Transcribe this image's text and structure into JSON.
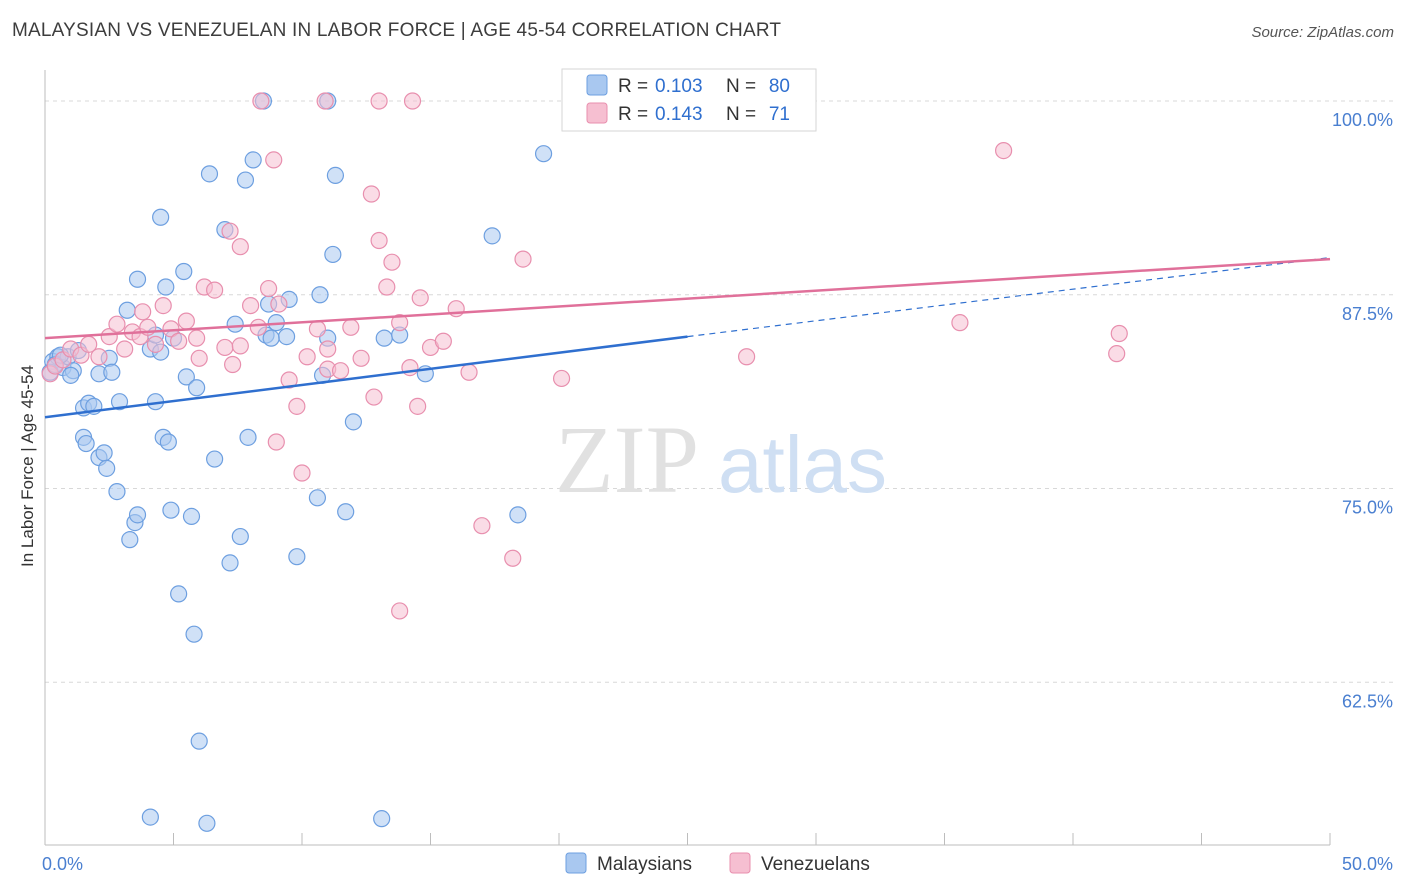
{
  "header": {
    "title": "MALAYSIAN VS VENEZUELAN IN LABOR FORCE | AGE 45-54 CORRELATION CHART",
    "source": "Source: ZipAtlas.com"
  },
  "watermark": {
    "zip": "ZIP",
    "atlas": "atlas"
  },
  "colors": {
    "blue_fill": "#a9c8f0",
    "blue_stroke": "#6d9fe0",
    "blue_line": "#2f6fcf",
    "pink_fill": "#f6bfd1",
    "pink_stroke": "#e88fae",
    "pink_line": "#e0709a",
    "tick_label": "#4a7fd0",
    "grid": "#d8d8d8"
  },
  "legend_box": {
    "rows": [
      {
        "r_label": "R =",
        "r_value": "0.103",
        "n_label": "N =",
        "n_value": "80",
        "series": "blue"
      },
      {
        "r_label": "R =",
        "r_value": "0.143",
        "n_label": "N =",
        "n_value": "71",
        "series": "pink"
      }
    ]
  },
  "chart_data": {
    "type": "scatter",
    "title": "MALAYSIAN VS VENEZUELAN IN LABOR FORCE | AGE 45-54 CORRELATION CHART",
    "xlabel": "",
    "ylabel": "In Labor Force | Age 45-54",
    "xlim": [
      0,
      50
    ],
    "ylim": [
      52,
      102
    ],
    "x_tick_labels": [
      {
        "value": 0,
        "label": "0.0%"
      },
      {
        "value": 50,
        "label": "50.0%"
      }
    ],
    "y_tick_labels": [
      {
        "value": 100,
        "label": "100.0%"
      },
      {
        "value": 87.5,
        "label": "87.5%"
      },
      {
        "value": 75,
        "label": "75.0%"
      },
      {
        "value": 62.5,
        "label": "62.5%"
      }
    ],
    "grid": true,
    "legend_position": "bottom",
    "series": [
      {
        "name": "Malaysians",
        "color_key": "blue",
        "R": 0.103,
        "N": 80,
        "trend": {
          "x0": 0,
          "y0": 79.6,
          "x1": 25,
          "y1": 84.8,
          "dashed_to_x": 50,
          "dashed_to_y": 89.9
        },
        "points": [
          [
            0.3,
            83.2
          ],
          [
            0.5,
            83.5
          ],
          [
            0.7,
            82.8
          ],
          [
            0.9,
            83.5
          ],
          [
            1.1,
            82.6
          ],
          [
            1.3,
            83.9
          ],
          [
            1.5,
            80.2
          ],
          [
            1.7,
            80.5
          ],
          [
            1.9,
            80.3
          ],
          [
            2.1,
            82.4
          ],
          [
            1.0,
            82.3
          ],
          [
            2.5,
            83.4
          ],
          [
            2.6,
            82.5
          ],
          [
            2.9,
            80.6
          ],
          [
            3.2,
            86.5
          ],
          [
            3.6,
            88.5
          ],
          [
            4.1,
            84.0
          ],
          [
            4.3,
            84.9
          ],
          [
            5.0,
            84.7
          ],
          [
            5.4,
            89.0
          ],
          [
            4.5,
            92.5
          ],
          [
            4.7,
            88.0
          ],
          [
            5.5,
            82.2
          ],
          [
            5.9,
            81.5
          ],
          [
            6.4,
            95.3
          ],
          [
            7.0,
            91.7
          ],
          [
            7.4,
            85.6
          ],
          [
            7.8,
            94.9
          ],
          [
            8.1,
            96.2
          ],
          [
            8.7,
            86.9
          ],
          [
            9.0,
            85.7
          ],
          [
            9.4,
            84.8
          ],
          [
            9.5,
            87.2
          ],
          [
            10.7,
            87.5
          ],
          [
            11.0,
            84.7
          ],
          [
            11.2,
            90.1
          ],
          [
            11.3,
            95.2
          ],
          [
            12.0,
            79.3
          ],
          [
            8.5,
            100.0
          ],
          [
            11.0,
            100.0
          ],
          [
            1.5,
            78.3
          ],
          [
            1.6,
            77.9
          ],
          [
            2.1,
            77.0
          ],
          [
            2.3,
            77.3
          ],
          [
            2.4,
            76.3
          ],
          [
            2.8,
            74.8
          ],
          [
            3.3,
            71.7
          ],
          [
            3.5,
            72.8
          ],
          [
            3.6,
            73.3
          ],
          [
            4.3,
            80.6
          ],
          [
            4.5,
            83.8
          ],
          [
            4.6,
            78.3
          ],
          [
            4.8,
            78.0
          ],
          [
            4.9,
            73.6
          ],
          [
            5.2,
            68.2
          ],
          [
            5.7,
            73.2
          ],
          [
            5.8,
            65.6
          ],
          [
            6.6,
            76.9
          ],
          [
            7.2,
            70.2
          ],
          [
            7.6,
            71.9
          ],
          [
            7.9,
            78.3
          ],
          [
            8.6,
            84.9
          ],
          [
            9.8,
            70.6
          ],
          [
            10.6,
            74.4
          ],
          [
            10.8,
            82.3
          ],
          [
            11.7,
            73.5
          ],
          [
            13.2,
            84.7
          ],
          [
            13.8,
            84.9
          ],
          [
            14.8,
            82.4
          ],
          [
            17.4,
            91.3
          ],
          [
            18.4,
            73.3
          ],
          [
            19.4,
            96.6
          ],
          [
            6.0,
            58.7
          ],
          [
            4.1,
            53.8
          ],
          [
            6.3,
            53.4
          ],
          [
            13.1,
            53.7
          ],
          [
            0.2,
            82.5
          ],
          [
            0.4,
            83.0
          ],
          [
            0.6,
            83.6
          ],
          [
            8.8,
            84.7
          ]
        ]
      },
      {
        "name": "Venezuelans",
        "color_key": "pink",
        "R": 0.143,
        "N": 71,
        "trend": {
          "x0": 0,
          "y0": 84.7,
          "x1": 50,
          "y1": 89.8
        },
        "points": [
          [
            0.2,
            82.4
          ],
          [
            0.4,
            82.9
          ],
          [
            0.7,
            83.3
          ],
          [
            1.0,
            84.0
          ],
          [
            1.4,
            83.6
          ],
          [
            1.7,
            84.3
          ],
          [
            2.1,
            83.5
          ],
          [
            2.5,
            84.8
          ],
          [
            2.8,
            85.6
          ],
          [
            3.1,
            84.0
          ],
          [
            3.4,
            85.1
          ],
          [
            3.7,
            84.8
          ],
          [
            4.0,
            85.4
          ],
          [
            4.3,
            84.3
          ],
          [
            4.6,
            86.8
          ],
          [
            4.9,
            85.3
          ],
          [
            5.2,
            84.5
          ],
          [
            5.5,
            85.8
          ],
          [
            5.9,
            84.7
          ],
          [
            6.2,
            88.0
          ],
          [
            6.6,
            87.8
          ],
          [
            7.0,
            84.1
          ],
          [
            7.3,
            83.0
          ],
          [
            7.6,
            84.2
          ],
          [
            8.0,
            86.8
          ],
          [
            8.3,
            85.4
          ],
          [
            8.7,
            87.9
          ],
          [
            9.1,
            86.9
          ],
          [
            9.5,
            82.0
          ],
          [
            9.8,
            80.3
          ],
          [
            10.2,
            83.5
          ],
          [
            10.6,
            85.3
          ],
          [
            11.0,
            82.7
          ],
          [
            11.5,
            82.6
          ],
          [
            11.9,
            85.4
          ],
          [
            12.3,
            83.4
          ],
          [
            12.8,
            80.9
          ],
          [
            13.3,
            88.0
          ],
          [
            13.8,
            85.7
          ],
          [
            14.2,
            82.8
          ],
          [
            14.6,
            87.3
          ],
          [
            15.0,
            84.1
          ],
          [
            15.5,
            84.5
          ],
          [
            16.0,
            86.6
          ],
          [
            16.5,
            82.5
          ],
          [
            17.0,
            72.6
          ],
          [
            18.2,
            70.5
          ],
          [
            18.6,
            89.8
          ],
          [
            20.1,
            82.1
          ],
          [
            27.3,
            83.5
          ],
          [
            35.6,
            85.7
          ],
          [
            37.3,
            96.8
          ],
          [
            41.7,
            83.7
          ],
          [
            41.8,
            85.0
          ],
          [
            8.4,
            100.0
          ],
          [
            10.9,
            100.0
          ],
          [
            13.0,
            100.0
          ],
          [
            14.3,
            100.0
          ],
          [
            7.6,
            90.6
          ],
          [
            8.9,
            96.2
          ],
          [
            12.7,
            94.0
          ],
          [
            13.0,
            91.0
          ],
          [
            13.5,
            89.6
          ],
          [
            10.0,
            76.0
          ],
          [
            9.0,
            78.0
          ],
          [
            13.8,
            67.1
          ],
          [
            11.0,
            84.0
          ],
          [
            7.2,
            91.6
          ],
          [
            14.5,
            80.3
          ],
          [
            6.0,
            83.4
          ],
          [
            3.8,
            86.4
          ]
        ]
      }
    ]
  }
}
